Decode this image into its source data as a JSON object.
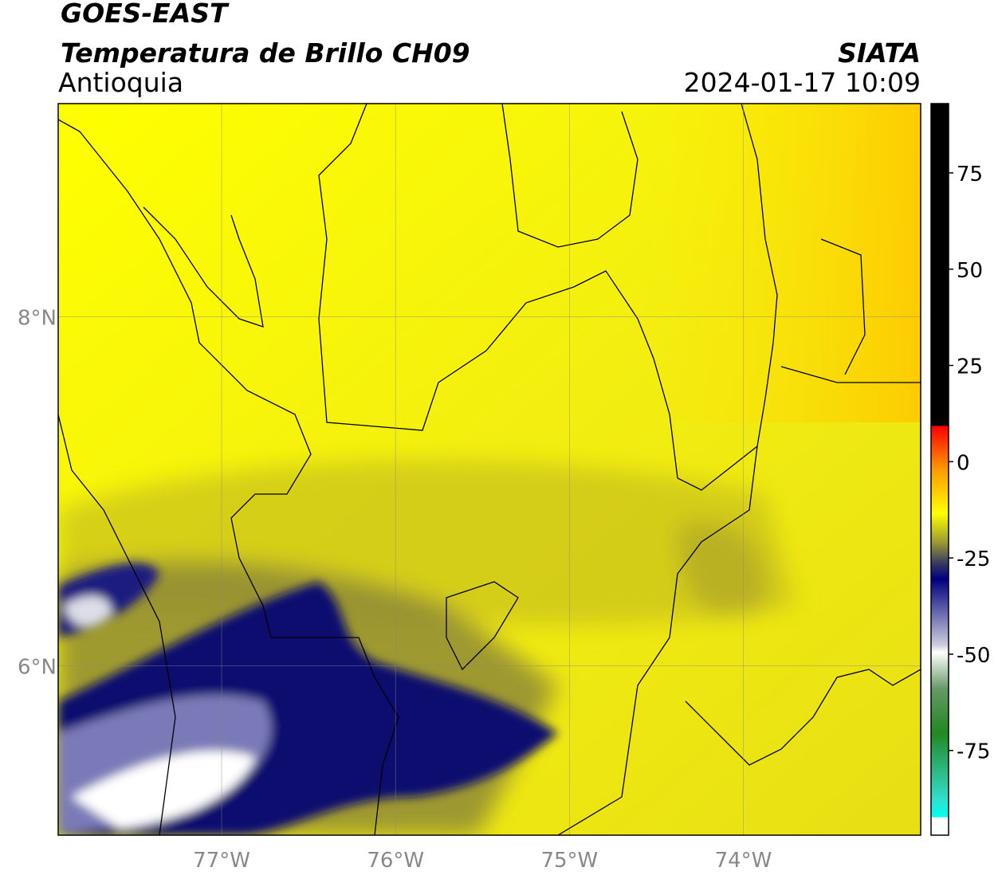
{
  "header": {
    "title": "GOES-EAST",
    "subtitle": "Temperatura de Brillo CH09",
    "region": "Antioquia",
    "source": "SIATA",
    "datetime": "2024-01-17 10:09"
  },
  "map": {
    "lonlim": [
      -77.94,
      -72.98
    ],
    "latlim": [
      5.03,
      9.22
    ],
    "lon_ticks": [
      {
        "value": -77,
        "label": "77°W"
      },
      {
        "value": -76,
        "label": "76°W"
      },
      {
        "value": -75,
        "label": "75°W"
      },
      {
        "value": -74,
        "label": "74°W"
      }
    ],
    "lat_ticks": [
      {
        "value": 8,
        "label": "8°N"
      },
      {
        "value": 6,
        "label": "6°N"
      }
    ]
  },
  "colorbar": {
    "lim": [
      -97,
      93
    ],
    "ticks": [
      75,
      50,
      25,
      0,
      -25,
      -50,
      -75
    ]
  }
}
